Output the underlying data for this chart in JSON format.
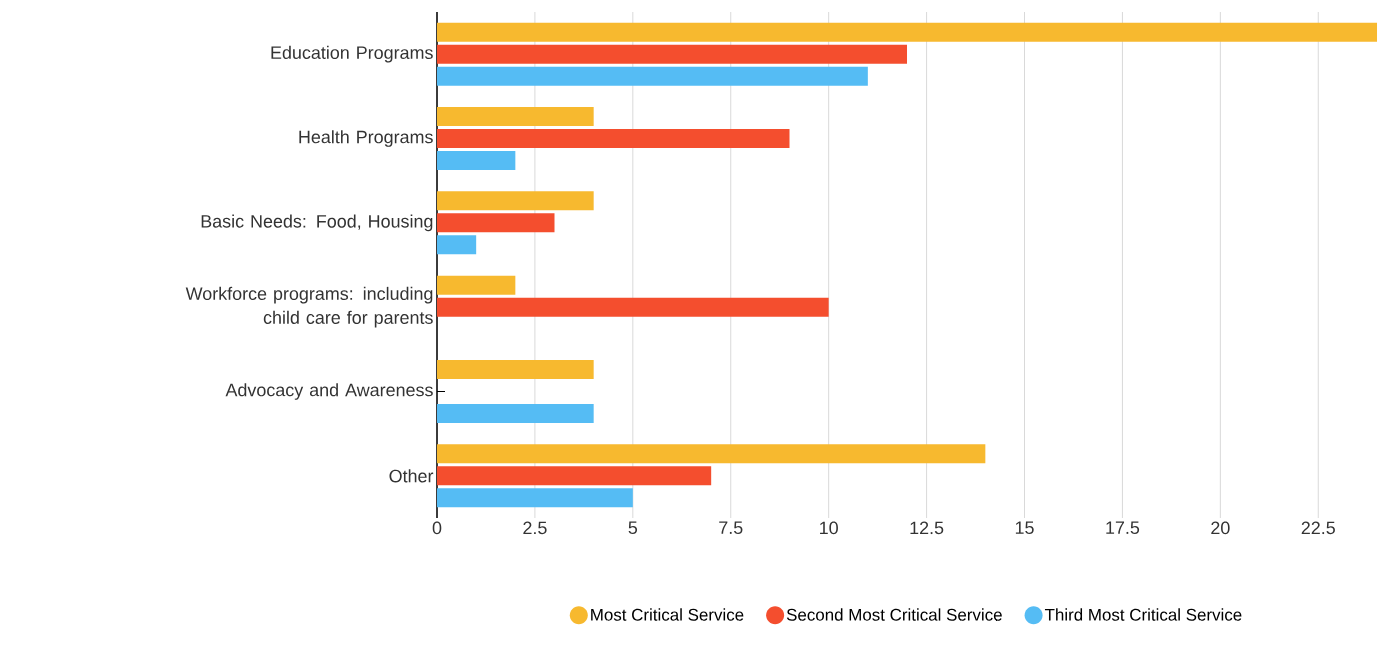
{
  "chart_data": {
    "type": "bar",
    "orientation": "horizontal",
    "categories": [
      "Education Programs",
      "Health Programs",
      "Basic Needs: Food, Housing",
      "Workforce programs: including child care for parents",
      "Advocacy and Awareness",
      "Other"
    ],
    "series": [
      {
        "name": "Most Critical Service",
        "color": "#f7b92f",
        "values": [
          24,
          4,
          4,
          2,
          4,
          14
        ]
      },
      {
        "name": "Second Most Critical Service",
        "color": "#f44e2e",
        "values": [
          12,
          9,
          3,
          10,
          null,
          7
        ]
      },
      {
        "name": "Third Most Critical Service",
        "color": "#55bcf4",
        "values": [
          11,
          2,
          1,
          null,
          4,
          5
        ]
      }
    ],
    "xlim": [
      0,
      24
    ],
    "xticks": [
      0,
      2.5,
      5,
      7.5,
      10,
      12.5,
      15,
      17.5,
      20,
      22.5
    ],
    "grid": "x",
    "legend": "bottom",
    "marker": "circle"
  }
}
